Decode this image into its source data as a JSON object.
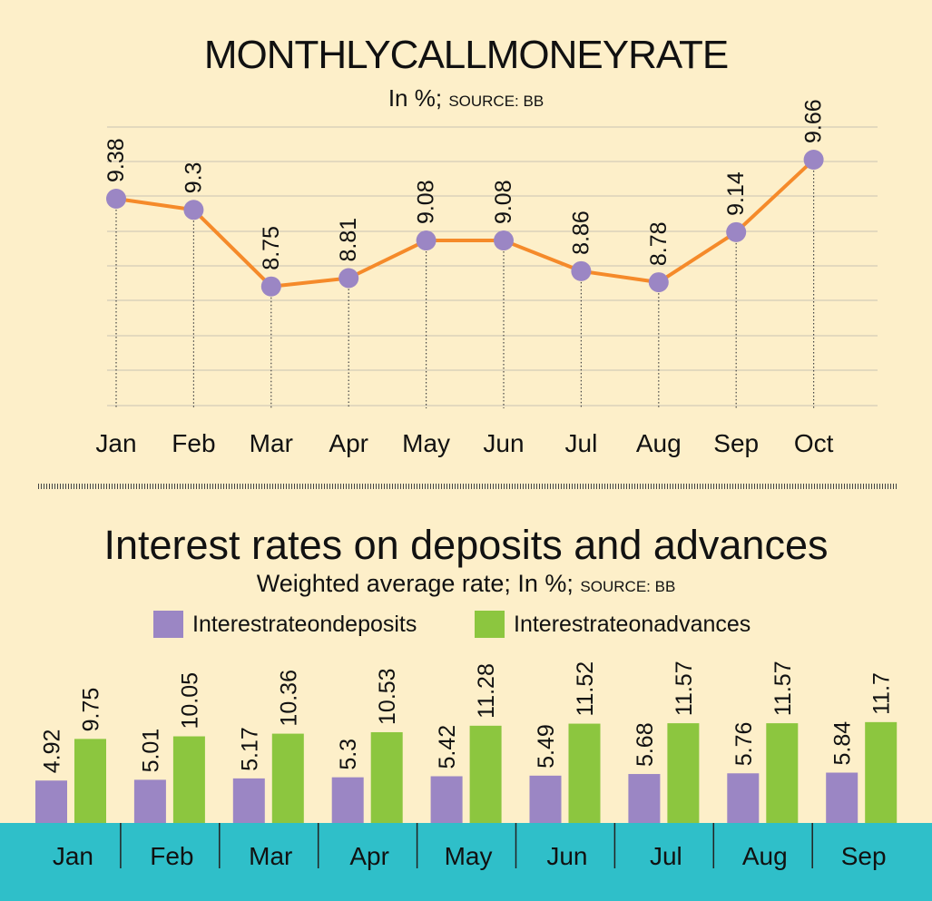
{
  "line_chart": {
    "title": "MONTHLYCALLMONEYRATE",
    "subtitle_main": "In %; ",
    "subtitle_source": "SOURCE: BB"
  },
  "bar_chart": {
    "title": "Interest rates on deposits and advances",
    "subtitle_main": "Weighted average rate; In %; ",
    "subtitle_source": "SOURCE: BB",
    "legend": [
      "Interestrateondeposits",
      "Interestrateonadvances"
    ]
  },
  "colors": {
    "background": "#fdefc9",
    "line": "#f58a2a",
    "marker": "#9b86c4",
    "deposits": "#9b86c4",
    "advances": "#8cc63f",
    "axis_band": "#2fbfc9"
  },
  "chart_data": [
    {
      "type": "line",
      "title": "MONTHLYCALLMONEYRATE",
      "subtitle": "In %; SOURCE: BB",
      "categories": [
        "Jan",
        "Feb",
        "Mar",
        "Apr",
        "May",
        "Jun",
        "Jul",
        "Aug",
        "Sep",
        "Oct"
      ],
      "series": [
        {
          "values": [
            9.38,
            9.3,
            8.75,
            8.81,
            9.08,
            9.08,
            8.86,
            8.78,
            9.14,
            9.66
          ]
        }
      ],
      "grid": true
    },
    {
      "type": "bar",
      "title": "Interest rates on deposits and advances",
      "subtitle": "Weighted average rate; In %; SOURCE: BB",
      "categories": [
        "Jan",
        "Feb",
        "Mar",
        "Apr",
        "May",
        "Jun",
        "Jul",
        "Aug",
        "Sep"
      ],
      "series": [
        {
          "name": "Interestrateondeposits",
          "values": [
            4.92,
            5.01,
            5.17,
            5.3,
            5.42,
            5.49,
            5.68,
            5.76,
            5.84
          ]
        },
        {
          "name": "Interestrateonadvances",
          "values": [
            9.75,
            10.05,
            10.36,
            10.53,
            11.28,
            11.52,
            11.57,
            11.57,
            11.7
          ]
        }
      ],
      "legend": "top"
    }
  ]
}
